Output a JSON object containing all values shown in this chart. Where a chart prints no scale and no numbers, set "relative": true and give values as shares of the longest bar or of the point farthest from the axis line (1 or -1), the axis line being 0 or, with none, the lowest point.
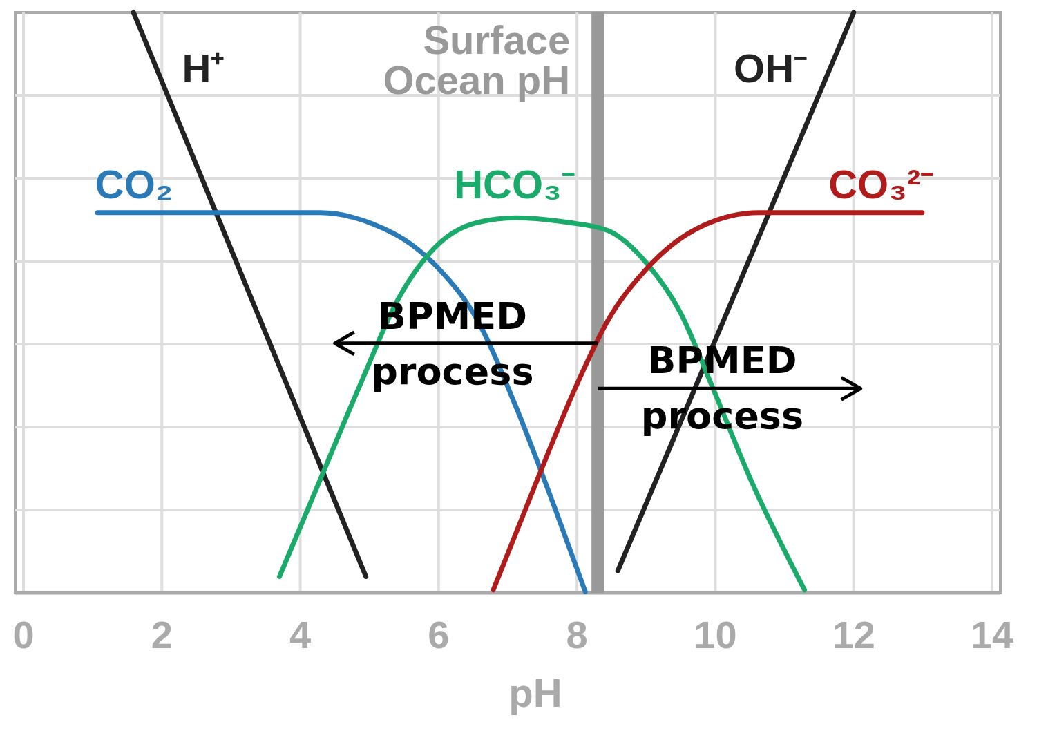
{
  "chart_data": {
    "type": "line",
    "relative": true,
    "xlabel": "pH",
    "xlim": [
      0,
      14
    ],
    "xticks": [
      0,
      2,
      4,
      6,
      8,
      10,
      12,
      14
    ],
    "grid": true,
    "series": [
      {
        "name": "H⁺",
        "color": "#222222",
        "x": [
          1.59,
          4.95
        ],
        "values": [
          1.0,
          0.028
        ]
      },
      {
        "name": "OH⁻",
        "color": "#222222",
        "x": [
          8.59,
          12.0
        ],
        "values": [
          0.038,
          1.0
        ]
      },
      {
        "name": "CO₂",
        "color": "#2a7ab8",
        "x": [
          1.07,
          4.29,
          5.04,
          5.61,
          5.99,
          6.56,
          7.12,
          7.69,
          8.12
        ],
        "values": [
          0.655,
          0.655,
          0.636,
          0.6,
          0.56,
          0.47,
          0.32,
          0.143,
          0.002
        ]
      },
      {
        "name": "HCO₃⁻",
        "color": "#1aaa6a",
        "x": [
          3.7,
          4.19,
          4.85,
          5.42,
          5.99,
          6.56,
          7.12,
          7.88,
          8.45,
          9.02,
          9.49,
          9.96,
          10.53,
          11.29
        ],
        "values": [
          0.028,
          0.167,
          0.354,
          0.507,
          0.6,
          0.638,
          0.646,
          0.638,
          0.624,
          0.566,
          0.484,
          0.354,
          0.19,
          0.005
        ]
      },
      {
        "name": "CO₃²⁻",
        "color": "#b01c1c",
        "x": [
          6.79,
          7.41,
          7.98,
          8.45,
          9.02,
          9.68,
          10.63,
          12.99
        ],
        "values": [
          0.005,
          0.19,
          0.354,
          0.47,
          0.56,
          0.624,
          0.655,
          0.655
        ]
      }
    ],
    "ref_lines": [
      {
        "axis": "x",
        "value": 8.3,
        "label": "Surface Ocean pH",
        "color": "#999999"
      }
    ],
    "annotations": [
      "BPMED process",
      "BPMED process"
    ]
  }
}
